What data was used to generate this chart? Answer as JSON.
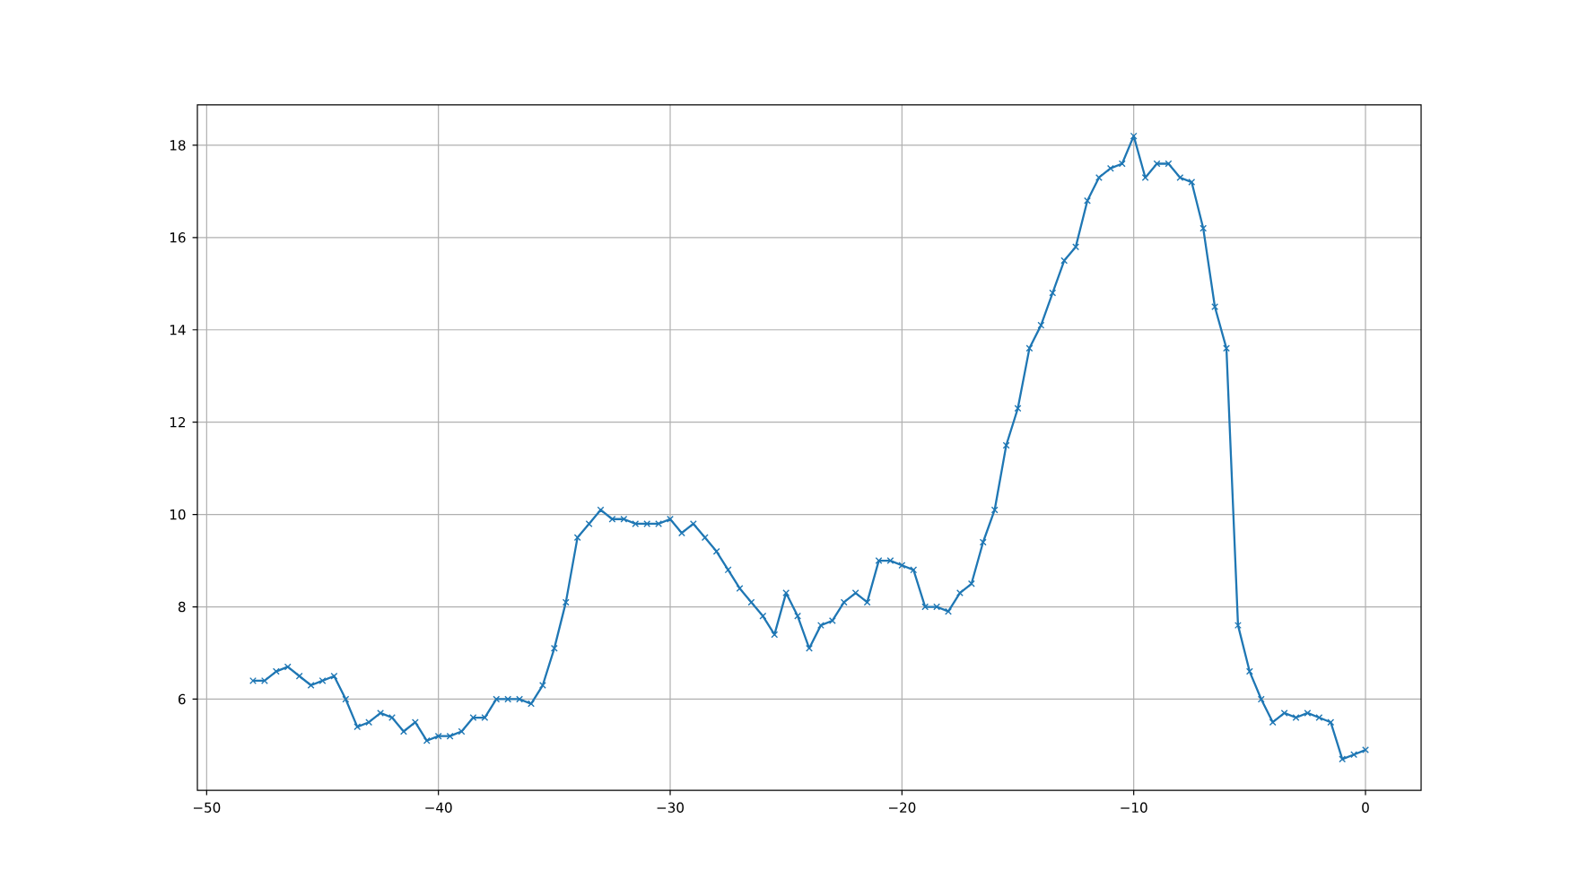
{
  "chart_data": {
    "type": "line",
    "color": "#1f77b4",
    "marker": "cross",
    "grid": true,
    "x": [
      -48,
      -47.5,
      -47,
      -46.5,
      -46,
      -45.5,
      -45,
      -44.5,
      -44,
      -43.5,
      -43,
      -42.5,
      -42,
      -41.5,
      -41,
      -40.5,
      -40,
      -39.5,
      -39,
      -38.5,
      -38,
      -37.5,
      -37,
      -36.5,
      -36,
      -35.5,
      -35,
      -34.5,
      -34,
      -33.5,
      -33,
      -32.5,
      -32,
      -31.5,
      -31,
      -30.5,
      -30,
      -29.5,
      -29,
      -28.5,
      -28,
      -27.5,
      -27,
      -26.5,
      -26,
      -25.5,
      -25,
      -24.5,
      -24,
      -23.5,
      -23,
      -22.5,
      -22,
      -21.5,
      -21,
      -20.5,
      -20,
      -19.5,
      -19,
      -18.5,
      -18,
      -17.5,
      -17,
      -16.5,
      -16,
      -15.5,
      -15,
      -14.5,
      -14,
      -13.5,
      -13,
      -12.5,
      -12,
      -11.5,
      -11,
      -10.5,
      -10,
      -9.5,
      -9,
      -8.5,
      -8,
      -7.5,
      -7,
      -6.5,
      -6,
      -5.5,
      -5,
      -4.5,
      -4,
      -3.5,
      -3,
      -2.5,
      -2,
      -1.5,
      -1,
      -0.5,
      0
    ],
    "values": [
      6.4,
      6.4,
      6.6,
      6.7,
      6.5,
      6.3,
      6.4,
      6.5,
      6.0,
      5.4,
      5.5,
      5.7,
      5.6,
      5.3,
      5.5,
      5.1,
      5.2,
      5.2,
      5.3,
      5.6,
      5.6,
      6.0,
      6.0,
      6.0,
      5.9,
      6.3,
      7.1,
      8.1,
      9.5,
      9.8,
      10.1,
      9.9,
      9.9,
      9.8,
      9.8,
      9.8,
      9.9,
      9.6,
      9.8,
      9.5,
      9.2,
      8.8,
      8.4,
      8.1,
      7.8,
      7.4,
      8.3,
      7.8,
      7.1,
      7.6,
      7.7,
      8.1,
      8.3,
      8.1,
      9.0,
      9.0,
      8.9,
      8.8,
      8.0,
      8.0,
      7.9,
      8.3,
      8.5,
      9.4,
      10.1,
      11.5,
      12.3,
      13.6,
      14.1,
      14.8,
      15.5,
      15.8,
      16.8,
      17.3,
      17.5,
      17.6,
      18.2,
      17.3,
      17.6,
      17.6,
      17.3,
      17.2,
      16.2,
      14.5,
      13.6,
      7.6,
      6.6,
      6.0,
      5.5,
      5.7,
      5.6,
      5.7,
      5.6,
      5.5,
      4.7,
      4.8,
      4.9
    ],
    "xlim": [
      -50.4,
      2.4
    ],
    "ylim": [
      4.025,
      18.875
    ],
    "xticks": [
      {
        "value": -50,
        "label": "−50"
      },
      {
        "value": -40,
        "label": "−40"
      },
      {
        "value": -30,
        "label": "−30"
      },
      {
        "value": -20,
        "label": "−20"
      },
      {
        "value": -10,
        "label": "−10"
      },
      0
    ],
    "yticks": [
      6,
      8,
      10,
      12,
      14,
      16,
      18
    ]
  }
}
